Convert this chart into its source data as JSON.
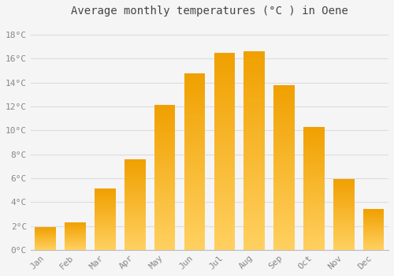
{
  "title": "Average monthly temperatures (°C ) in Oene",
  "months": [
    "Jan",
    "Feb",
    "Mar",
    "Apr",
    "May",
    "Jun",
    "Jul",
    "Aug",
    "Sep",
    "Oct",
    "Nov",
    "Dec"
  ],
  "values": [
    1.9,
    2.3,
    5.1,
    7.6,
    12.1,
    14.8,
    16.5,
    16.6,
    13.8,
    10.3,
    5.9,
    3.4
  ],
  "bar_color_bottom": "#FFD060",
  "bar_color_top": "#F0A000",
  "background_color": "#F5F5F5",
  "grid_color": "#DDDDDD",
  "ylim": [
    0,
    19
  ],
  "yticks": [
    0,
    2,
    4,
    6,
    8,
    10,
    12,
    14,
    16,
    18
  ],
  "ytick_labels": [
    "0°C",
    "2°C",
    "4°C",
    "6°C",
    "8°C",
    "10°C",
    "12°C",
    "14°C",
    "16°C",
    "18°C"
  ],
  "title_fontsize": 10,
  "tick_fontsize": 8,
  "tick_color": "#888888",
  "title_color": "#444444",
  "bar_width": 0.7,
  "n_gradient_steps": 100
}
